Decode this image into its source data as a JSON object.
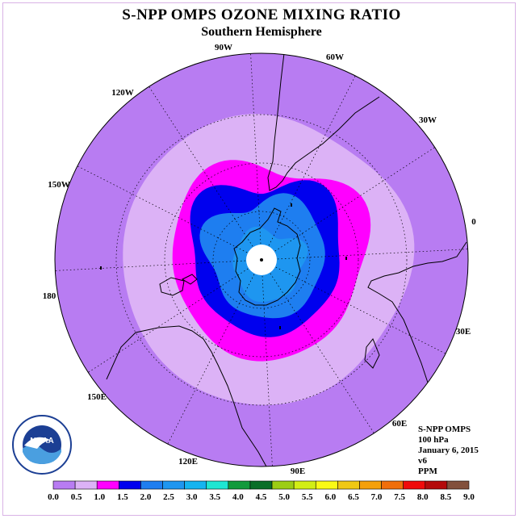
{
  "title": "S-NPP OMPS OZONE MIXING RATIO",
  "subtitle": "Southern Hemisphere",
  "longitude_labels": [
    "90W",
    "60W",
    "30W",
    "0",
    "30E",
    "60E",
    "90E",
    "120E",
    "150E",
    "180",
    "150W",
    "120W"
  ],
  "info": {
    "instrument": "S-NPP OMPS",
    "level": "100 hPa",
    "date": "January 6, 2015",
    "version": "v6",
    "units": "PPM"
  },
  "colorbar": {
    "ticks": [
      "0.0",
      "0.5",
      "1.0",
      "1.5",
      "2.0",
      "2.5",
      "3.0",
      "3.5",
      "4.0",
      "4.5",
      "5.0",
      "5.5",
      "6.0",
      "6.5",
      "7.0",
      "7.5",
      "8.0",
      "8.5",
      "9.0"
    ],
    "colors": [
      "#b87cf2",
      "#dcb2f6",
      "#ff00ff",
      "#0000ee",
      "#1e7ef0",
      "#1e96f0",
      "#14b4f0",
      "#1ee6d2",
      "#129a3c",
      "#0a6e28",
      "#9ccd14",
      "#d2ee14",
      "#fafa14",
      "#f0c814",
      "#f5a00a",
      "#f06e0a",
      "#f00a0a",
      "#b40a0a",
      "#82503c"
    ]
  },
  "map": {
    "ozone_levels_present": [
      "0.0-0.5",
      "0.5-1.0",
      "1.0-1.5",
      "1.5-2.0",
      "2.0-2.5",
      "2.5-3.0"
    ],
    "colors": {
      "ocean_fill": "#b87cf2",
      "light_band": "#dcb2f6",
      "magenta_band": "#ff00ff",
      "blue_band": "#0000ee",
      "mid_blue": "#1e7ef0",
      "light_blue": "#1e96f0",
      "pole_hole": "#ffffff"
    }
  },
  "logo_text": "NOAA"
}
